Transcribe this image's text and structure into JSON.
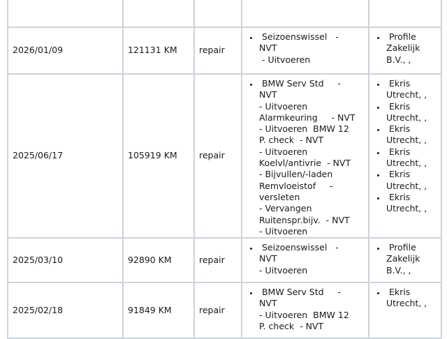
{
  "rows": [
    {
      "date": "2026/01/09",
      "km": "121131 KM",
      "type": "repair",
      "jobs": [
        " Seizoenswissel   -\nNVT\n - Uitvoeren"
      ],
      "garages": [
        " Profile\nZakelijk\nB.V., ,"
      ]
    },
    {
      "date": "2025/06/17",
      "km": "105919 KM",
      "type": "repair",
      "jobs": [
        " BMW Serv Std     -\nNVT\n- Uitvoeren\nAlarmkeuring     - NVT\n- Uitvoeren  BMW 12\nP. check  - NVT\n- Uitvoeren\nKoelvl/antivrie  - NVT\n- Bijvullen/-laden\nRemvloeistof     -\nversleten\n- Vervangen\nRuitenspr.bijv.  - NVT\n- Uitvoeren"
      ],
      "garages": [
        " Ekris\nUtrecht, ,",
        " Ekris\nUtrecht, ,",
        " Ekris\nUtrecht, ,",
        " Ekris\nUtrecht, ,",
        " Ekris\nUtrecht, ,",
        " Ekris\nUtrecht, ,"
      ]
    },
    {
      "date": "2025/03/10",
      "km": "92890 KM",
      "type": "repair",
      "jobs": [
        " Seizoenswissel   -\nNVT\n- Uitvoeren"
      ],
      "garages": [
        " Profile\nZakelijk\nB.V., ,"
      ]
    },
    {
      "date": "2025/02/18",
      "km": "91849 KM",
      "type": "repair",
      "jobs": [
        " BMW Serv Std     -\nNVT\n- Uitvoeren  BMW 12\nP. check  - NVT"
      ],
      "garages": [
        " Ekris\nUtrecht, ,"
      ]
    }
  ]
}
